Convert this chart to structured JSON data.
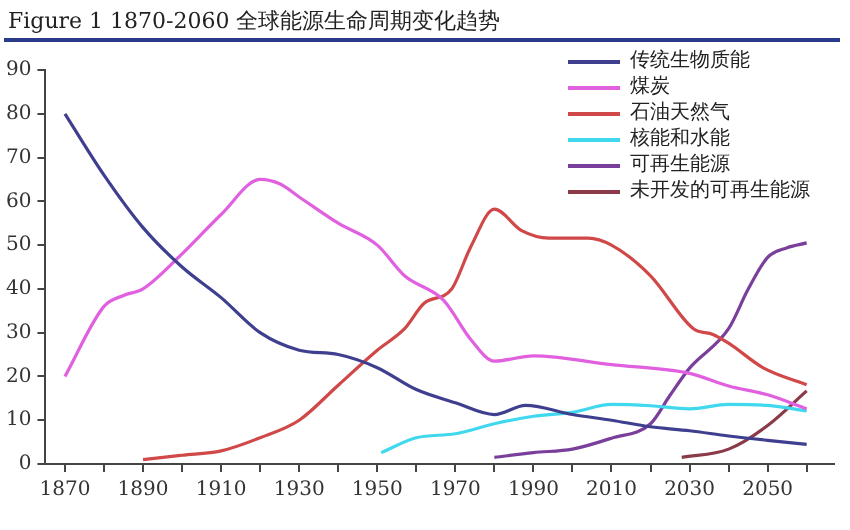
{
  "chart_data": {
    "type": "line",
    "title": "Figure 1   1870-2060 全球能源生命周期变化趋势",
    "xlim": [
      1865,
      2067
    ],
    "xticks": [
      1870,
      {
        "value": 1880,
        "label": null
      },
      1890,
      {
        "value": 1900,
        "label": null
      },
      1910,
      {
        "value": 1920,
        "label": null
      },
      1930,
      {
        "value": 1940,
        "label": null
      },
      1950,
      {
        "value": 1960,
        "label": null
      },
      1970,
      {
        "value": 1980,
        "label": null
      },
      1990,
      {
        "value": 2000,
        "label": null
      },
      2010,
      {
        "value": 2020,
        "label": null
      },
      2030,
      {
        "value": 2040,
        "label": null
      },
      2050,
      {
        "value": 2060,
        "label": null
      }
    ],
    "ylim": [
      0,
      90
    ],
    "yticks": [
      0,
      10,
      20,
      30,
      40,
      50,
      60,
      70,
      80,
      90
    ],
    "grid": false,
    "legend": "top right",
    "marker": "none",
    "line_style": "solid",
    "series": [
      {
        "name": "传统生物质能",
        "color": "#3f3f8f",
        "x": [
          1870,
          1880,
          1890,
          1900,
          1910,
          1920,
          1930,
          1940,
          1950,
          1960,
          1970,
          1980,
          1988,
          2000,
          2010,
          2020,
          2030,
          2040,
          2050,
          2060
        ],
        "values": [
          80,
          66,
          54,
          45,
          38,
          30,
          26,
          25,
          22,
          17,
          14,
          11.3,
          13.4,
          11.3,
          10,
          8.5,
          7.6,
          6.4,
          5.4,
          4.5
        ]
      },
      {
        "name": "煤炭",
        "color": "#e060e0",
        "x": [
          1870,
          1880,
          1885,
          1890,
          1900,
          1910,
          1920,
          1925,
          1930,
          1940,
          1950,
          1957,
          1967,
          1974,
          1980,
          1990,
          2010,
          2030,
          2040,
          2050,
          2060
        ],
        "values": [
          20,
          36,
          38.5,
          40,
          48,
          57,
          65,
          64,
          61,
          55,
          50,
          43,
          37.4,
          28.4,
          23.5,
          24.7,
          22.7,
          20.7,
          17.8,
          15.8,
          12.6
        ]
      },
      {
        "name": "石油天然气",
        "color": "#d04848",
        "x": [
          1890,
          1900,
          1910,
          1920,
          1930,
          1940,
          1950,
          1957,
          1962,
          1969,
          1974,
          1980,
          1987,
          1994,
          2004,
          2010,
          2020,
          2031,
          2036,
          2040,
          2049,
          2060
        ],
        "values": [
          1,
          2,
          3,
          6,
          10,
          18,
          26,
          30.9,
          36.7,
          39.9,
          49.7,
          58.2,
          53.3,
          51.6,
          51.6,
          50,
          43,
          30.9,
          29.6,
          27.6,
          21.9,
          18.1
        ]
      },
      {
        "name": "核能和水能",
        "color": "#40d8ee",
        "x": [
          1951,
          1960,
          1970,
          1980,
          1990,
          2000,
          2010,
          2020,
          2030,
          2040,
          2050,
          2060
        ],
        "values": [
          2.6,
          6,
          6.9,
          9.2,
          10.9,
          11.8,
          13.6,
          13.3,
          12.6,
          13.6,
          13.4,
          12.1
        ]
      },
      {
        "name": "可再生能源",
        "color": "#7a3f9a",
        "x": [
          1980,
          1990,
          2000,
          2010,
          2020,
          2025,
          2030,
          2040,
          2045,
          2050,
          2055,
          2060
        ],
        "values": [
          1.5,
          2.6,
          3.4,
          5.9,
          9.2,
          15.7,
          21.9,
          30.9,
          39.9,
          47.2,
          49.4,
          50.5
        ]
      },
      {
        "name": "未开发的可再生能源",
        "color": "#8b3a4a",
        "x": [
          2028,
          2040,
          2050,
          2060
        ],
        "values": [
          1.5,
          3.4,
          8.8,
          16.7
        ]
      }
    ]
  }
}
